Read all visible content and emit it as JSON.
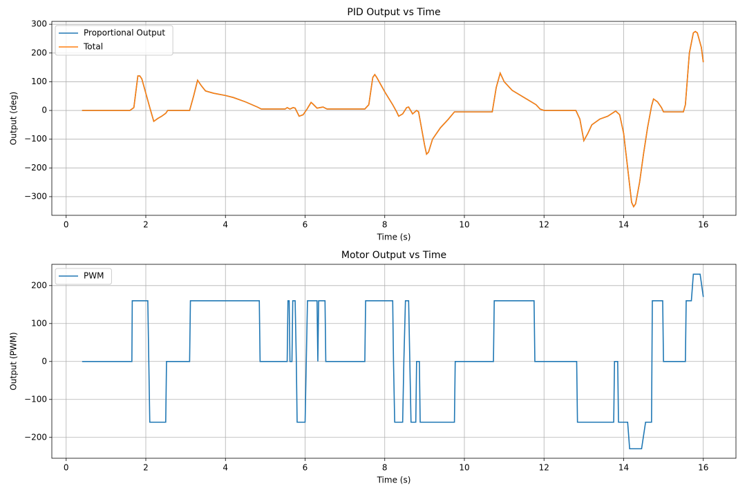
{
  "chart_data": [
    {
      "type": "line",
      "title": "PID Output vs Time",
      "xlabel": "Time (s)",
      "ylabel": "Output (deg)",
      "xlim": [
        -0.36,
        16.82
      ],
      "ylim": [
        -365,
        310
      ],
      "xticks": [
        0,
        2,
        4,
        6,
        8,
        10,
        12,
        14,
        16
      ],
      "yticks": [
        {
          "value": -300,
          "label": "−300"
        },
        {
          "value": -200,
          "label": "−200"
        },
        {
          "value": -100,
          "label": "−100"
        },
        0,
        100,
        200,
        300
      ],
      "grid": true,
      "legend": "upper left",
      "x": [
        0.4,
        1.6,
        1.7,
        1.8,
        1.85,
        1.9,
        2.0,
        2.1,
        2.2,
        2.3,
        2.4,
        2.5,
        2.55,
        3.1,
        3.2,
        3.3,
        3.4,
        3.5,
        3.7,
        4.0,
        4.2,
        4.5,
        4.8,
        4.9,
        5.5,
        5.55,
        5.62,
        5.7,
        5.75,
        5.85,
        5.95,
        6.05,
        6.15,
        6.2,
        6.3,
        6.45,
        6.55,
        7.5,
        7.6,
        7.7,
        7.75,
        7.8,
        8.0,
        8.2,
        8.3,
        8.35,
        8.45,
        8.55,
        8.6,
        8.7,
        8.8,
        8.85,
        9.0,
        9.05,
        9.1,
        9.2,
        9.4,
        9.6,
        9.75,
        10.7,
        10.8,
        10.9,
        11.0,
        11.2,
        11.5,
        11.8,
        11.9,
        12.0,
        12.8,
        12.9,
        13.0,
        13.1,
        13.2,
        13.4,
        13.6,
        13.8,
        13.9,
        14.0,
        14.1,
        14.2,
        14.25,
        14.3,
        14.4,
        14.5,
        14.6,
        14.7,
        14.75,
        14.85,
        14.95,
        15.0,
        15.5,
        15.55,
        15.65,
        15.75,
        15.8,
        15.85,
        15.95,
        16.0
      ],
      "series": [
        {
          "name": "Proportional Output",
          "color": "#1f77b4",
          "values": [
            0,
            0,
            10,
            120,
            120,
            110,
            60,
            10,
            -38,
            -28,
            -20,
            -10,
            0,
            0,
            50,
            105,
            85,
            68,
            60,
            52,
            45,
            30,
            12,
            5,
            5,
            10,
            5,
            10,
            8,
            -20,
            -15,
            5,
            28,
            22,
            8,
            12,
            5,
            5,
            20,
            115,
            125,
            115,
            65,
            20,
            -5,
            -20,
            -12,
            10,
            12,
            -12,
            0,
            -5,
            -120,
            -152,
            -145,
            -100,
            -60,
            -30,
            -5,
            -5,
            80,
            130,
            100,
            70,
            45,
            20,
            5,
            0,
            0,
            -30,
            -105,
            -80,
            -50,
            -30,
            -20,
            -2,
            -15,
            -80,
            -200,
            -320,
            -335,
            -325,
            -250,
            -150,
            -60,
            15,
            40,
            30,
            10,
            -5,
            -5,
            20,
            200,
            270,
            275,
            270,
            220,
            168
          ]
        },
        {
          "name": "Total",
          "color": "#ff7f0e",
          "values": [
            0,
            0,
            10,
            120,
            120,
            110,
            60,
            10,
            -38,
            -28,
            -20,
            -10,
            0,
            0,
            50,
            105,
            85,
            68,
            60,
            52,
            45,
            30,
            12,
            5,
            5,
            10,
            5,
            10,
            8,
            -20,
            -15,
            5,
            28,
            22,
            8,
            12,
            5,
            5,
            20,
            115,
            125,
            115,
            65,
            20,
            -5,
            -20,
            -12,
            10,
            12,
            -12,
            0,
            -5,
            -120,
            -152,
            -145,
            -100,
            -60,
            -30,
            -5,
            -5,
            80,
            130,
            100,
            70,
            45,
            20,
            5,
            0,
            0,
            -30,
            -105,
            -80,
            -50,
            -30,
            -20,
            -2,
            -15,
            -80,
            -200,
            -320,
            -335,
            -325,
            -250,
            -150,
            -60,
            15,
            40,
            30,
            10,
            -5,
            -5,
            20,
            200,
            270,
            275,
            270,
            220,
            168
          ]
        }
      ]
    },
    {
      "type": "line",
      "title": "Motor Output vs Time",
      "xlabel": "Time (s)",
      "ylabel": "Output (PWM)",
      "xlim": [
        -0.36,
        16.82
      ],
      "ylim": [
        -255,
        256
      ],
      "xticks": [
        0,
        2,
        4,
        6,
        8,
        10,
        12,
        14,
        16
      ],
      "yticks": [
        {
          "value": -200,
          "label": "−200"
        },
        {
          "value": -100,
          "label": "−100"
        },
        0,
        100,
        200
      ],
      "grid": true,
      "legend": "upper left",
      "x": [
        0.4,
        1.65,
        1.66,
        2.05,
        2.1,
        2.5,
        2.52,
        3.1,
        3.12,
        4.85,
        4.87,
        5.55,
        5.57,
        5.6,
        5.62,
        5.67,
        5.69,
        5.75,
        5.78,
        5.8,
        6.0,
        6.03,
        6.06,
        6.3,
        6.32,
        6.34,
        6.5,
        6.52,
        7.5,
        7.52,
        8.2,
        8.22,
        8.25,
        8.45,
        8.48,
        8.52,
        8.6,
        8.63,
        8.66,
        8.78,
        8.8,
        8.87,
        8.89,
        9.75,
        9.77,
        10.73,
        10.75,
        11.75,
        11.77,
        12.82,
        12.84,
        13.75,
        13.77,
        13.85,
        13.87,
        14.1,
        14.15,
        14.45,
        14.55,
        14.7,
        14.72,
        14.98,
        15.0,
        15.55,
        15.57,
        15.7,
        15.75,
        15.92,
        16.0
      ],
      "series": [
        {
          "name": "PWM",
          "color": "#1f77b4",
          "values": [
            0,
            0,
            160,
            160,
            -160,
            -160,
            0,
            0,
            160,
            160,
            0,
            0,
            160,
            160,
            0,
            0,
            160,
            160,
            0,
            -160,
            -160,
            0,
            160,
            160,
            0,
            160,
            160,
            0,
            0,
            160,
            160,
            0,
            -160,
            -160,
            0,
            160,
            160,
            0,
            -160,
            -160,
            0,
            0,
            -160,
            -160,
            0,
            0,
            160,
            160,
            0,
            0,
            -160,
            -160,
            0,
            0,
            -160,
            -160,
            -230,
            -230,
            -160,
            -160,
            160,
            160,
            0,
            0,
            160,
            160,
            230,
            230,
            170
          ]
        }
      ]
    }
  ]
}
